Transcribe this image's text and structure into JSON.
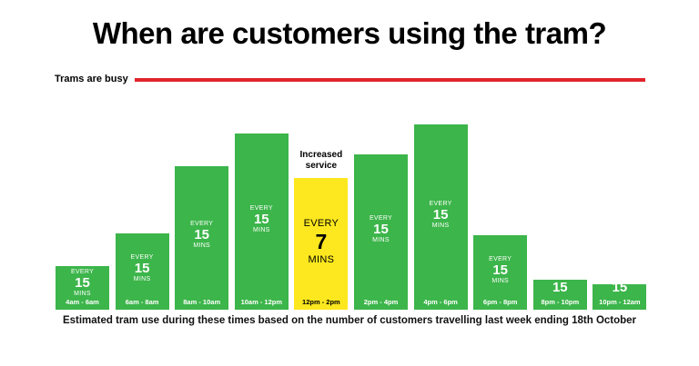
{
  "chart_data": {
    "type": "bar",
    "title": "When are customers using the tram?",
    "busy_label": "Trams are busy",
    "caption": "Estimated tram use during these times based on the number of customers travelling last week ending 18th October",
    "categories": [
      "4am - 6am",
      "6am - 8am",
      "8am - 10am",
      "10am - 12pm",
      "12pm - 2pm",
      "2pm - 4pm",
      "4pm - 6pm",
      "6pm - 8pm",
      "8pm - 10pm",
      "10pm - 12am"
    ],
    "values": [
      19,
      33,
      62,
      76,
      57,
      67,
      80,
      32,
      13,
      11
    ],
    "busy_level": 100,
    "ylim": [
      0,
      100
    ],
    "frequencies": [
      {
        "top": "EVERY",
        "number": "15",
        "bottom": "MINS"
      },
      {
        "top": "EVERY",
        "number": "15",
        "bottom": "MINS"
      },
      {
        "top": "EVERY",
        "number": "15",
        "bottom": "MINS"
      },
      {
        "top": "EVERY",
        "number": "15",
        "bottom": "MINS"
      },
      {
        "top": "EVERY",
        "number": "7",
        "bottom": "MINS"
      },
      {
        "top": "EVERY",
        "number": "15",
        "bottom": "MINS"
      },
      {
        "top": "EVERY",
        "number": "15",
        "bottom": "MINS"
      },
      {
        "top": "EVERY",
        "number": "15",
        "bottom": "MINS"
      },
      {
        "top": "",
        "number": "15",
        "bottom": ""
      },
      {
        "top": "",
        "number": "15",
        "bottom": ""
      }
    ],
    "highlight_index": 4,
    "highlight_note": "Increased service",
    "colors": {
      "bar": "#3cb54a",
      "highlight": "#fde81f",
      "busy_line": "#e0242b",
      "bar_text": "#ffffff",
      "highlight_text": "#000000"
    }
  }
}
